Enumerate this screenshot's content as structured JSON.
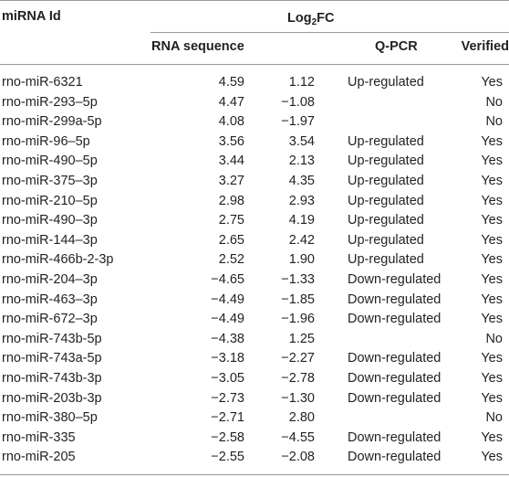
{
  "table": {
    "header": {
      "id": "miRNA Id",
      "log_fc": {
        "base": "Log",
        "sub": "2",
        "rest": "FC"
      },
      "rna_sequence": "RNA sequence",
      "qpcr": "Q-PCR",
      "verified": "Verified"
    },
    "rows": [
      [
        "rno-miR-6321",
        "4.59",
        "1.12",
        "Up-regulated",
        "Yes"
      ],
      [
        "rno-miR-293–5p",
        "4.47",
        "−1.08",
        null,
        "No"
      ],
      [
        "rno-miR-299a-5p",
        "4.08",
        "−1.97",
        null,
        "No"
      ],
      [
        "rno-miR-96–5p",
        "3.56",
        "3.54",
        "Up-regulated",
        "Yes"
      ],
      [
        "rno-miR-490–5p",
        "3.44",
        "2.13",
        "Up-regulated",
        "Yes"
      ],
      [
        "rno-miR-375–3p",
        "3.27",
        "4.35",
        "Up-regulated",
        "Yes"
      ],
      [
        "rno-miR-210–5p",
        "2.98",
        "2.93",
        "Up-regulated",
        "Yes"
      ],
      [
        "rno-miR-490–3p",
        "2.75",
        "4.19",
        "Up-regulated",
        "Yes"
      ],
      [
        "rno-miR-144–3p",
        "2.65",
        "2.42",
        "Up-regulated",
        "Yes"
      ],
      [
        "rno-miR-466b-2-3p",
        "2.52",
        "1.90",
        "Up-regulated",
        "Yes"
      ],
      [
        "rno-miR-204–3p",
        "−4.65",
        "−1.33",
        "Down-regulated",
        "Yes"
      ],
      [
        "rno-miR-463–3p",
        "−4.49",
        "−1.85",
        "Down-regulated",
        "Yes"
      ],
      [
        "rno-miR-672–3p",
        "−4.49",
        "−1.96",
        "Down-regulated",
        "Yes"
      ],
      [
        "rno-miR-743b-5p",
        "−4.38",
        "1.25",
        null,
        "No"
      ],
      [
        "rno-miR-743a-5p",
        "−3.18",
        "−2.27",
        "Down-regulated",
        "Yes"
      ],
      [
        "rno-miR-743b-3p",
        "−3.05",
        "−2.78",
        "Down-regulated",
        "Yes"
      ],
      [
        "rno-miR-203b-3p",
        "−2.73",
        "−1.30",
        "Down-regulated",
        "Yes"
      ],
      [
        "rno-miR-380–5p",
        "−2.71",
        "2.80",
        null,
        "No"
      ],
      [
        "rno-miR-335",
        "−2.58",
        "−4.55",
        "Down-regulated",
        "Yes"
      ],
      [
        "rno-miR-205",
        "−2.55",
        "−2.08",
        "Down-regulated",
        "Yes"
      ]
    ]
  }
}
